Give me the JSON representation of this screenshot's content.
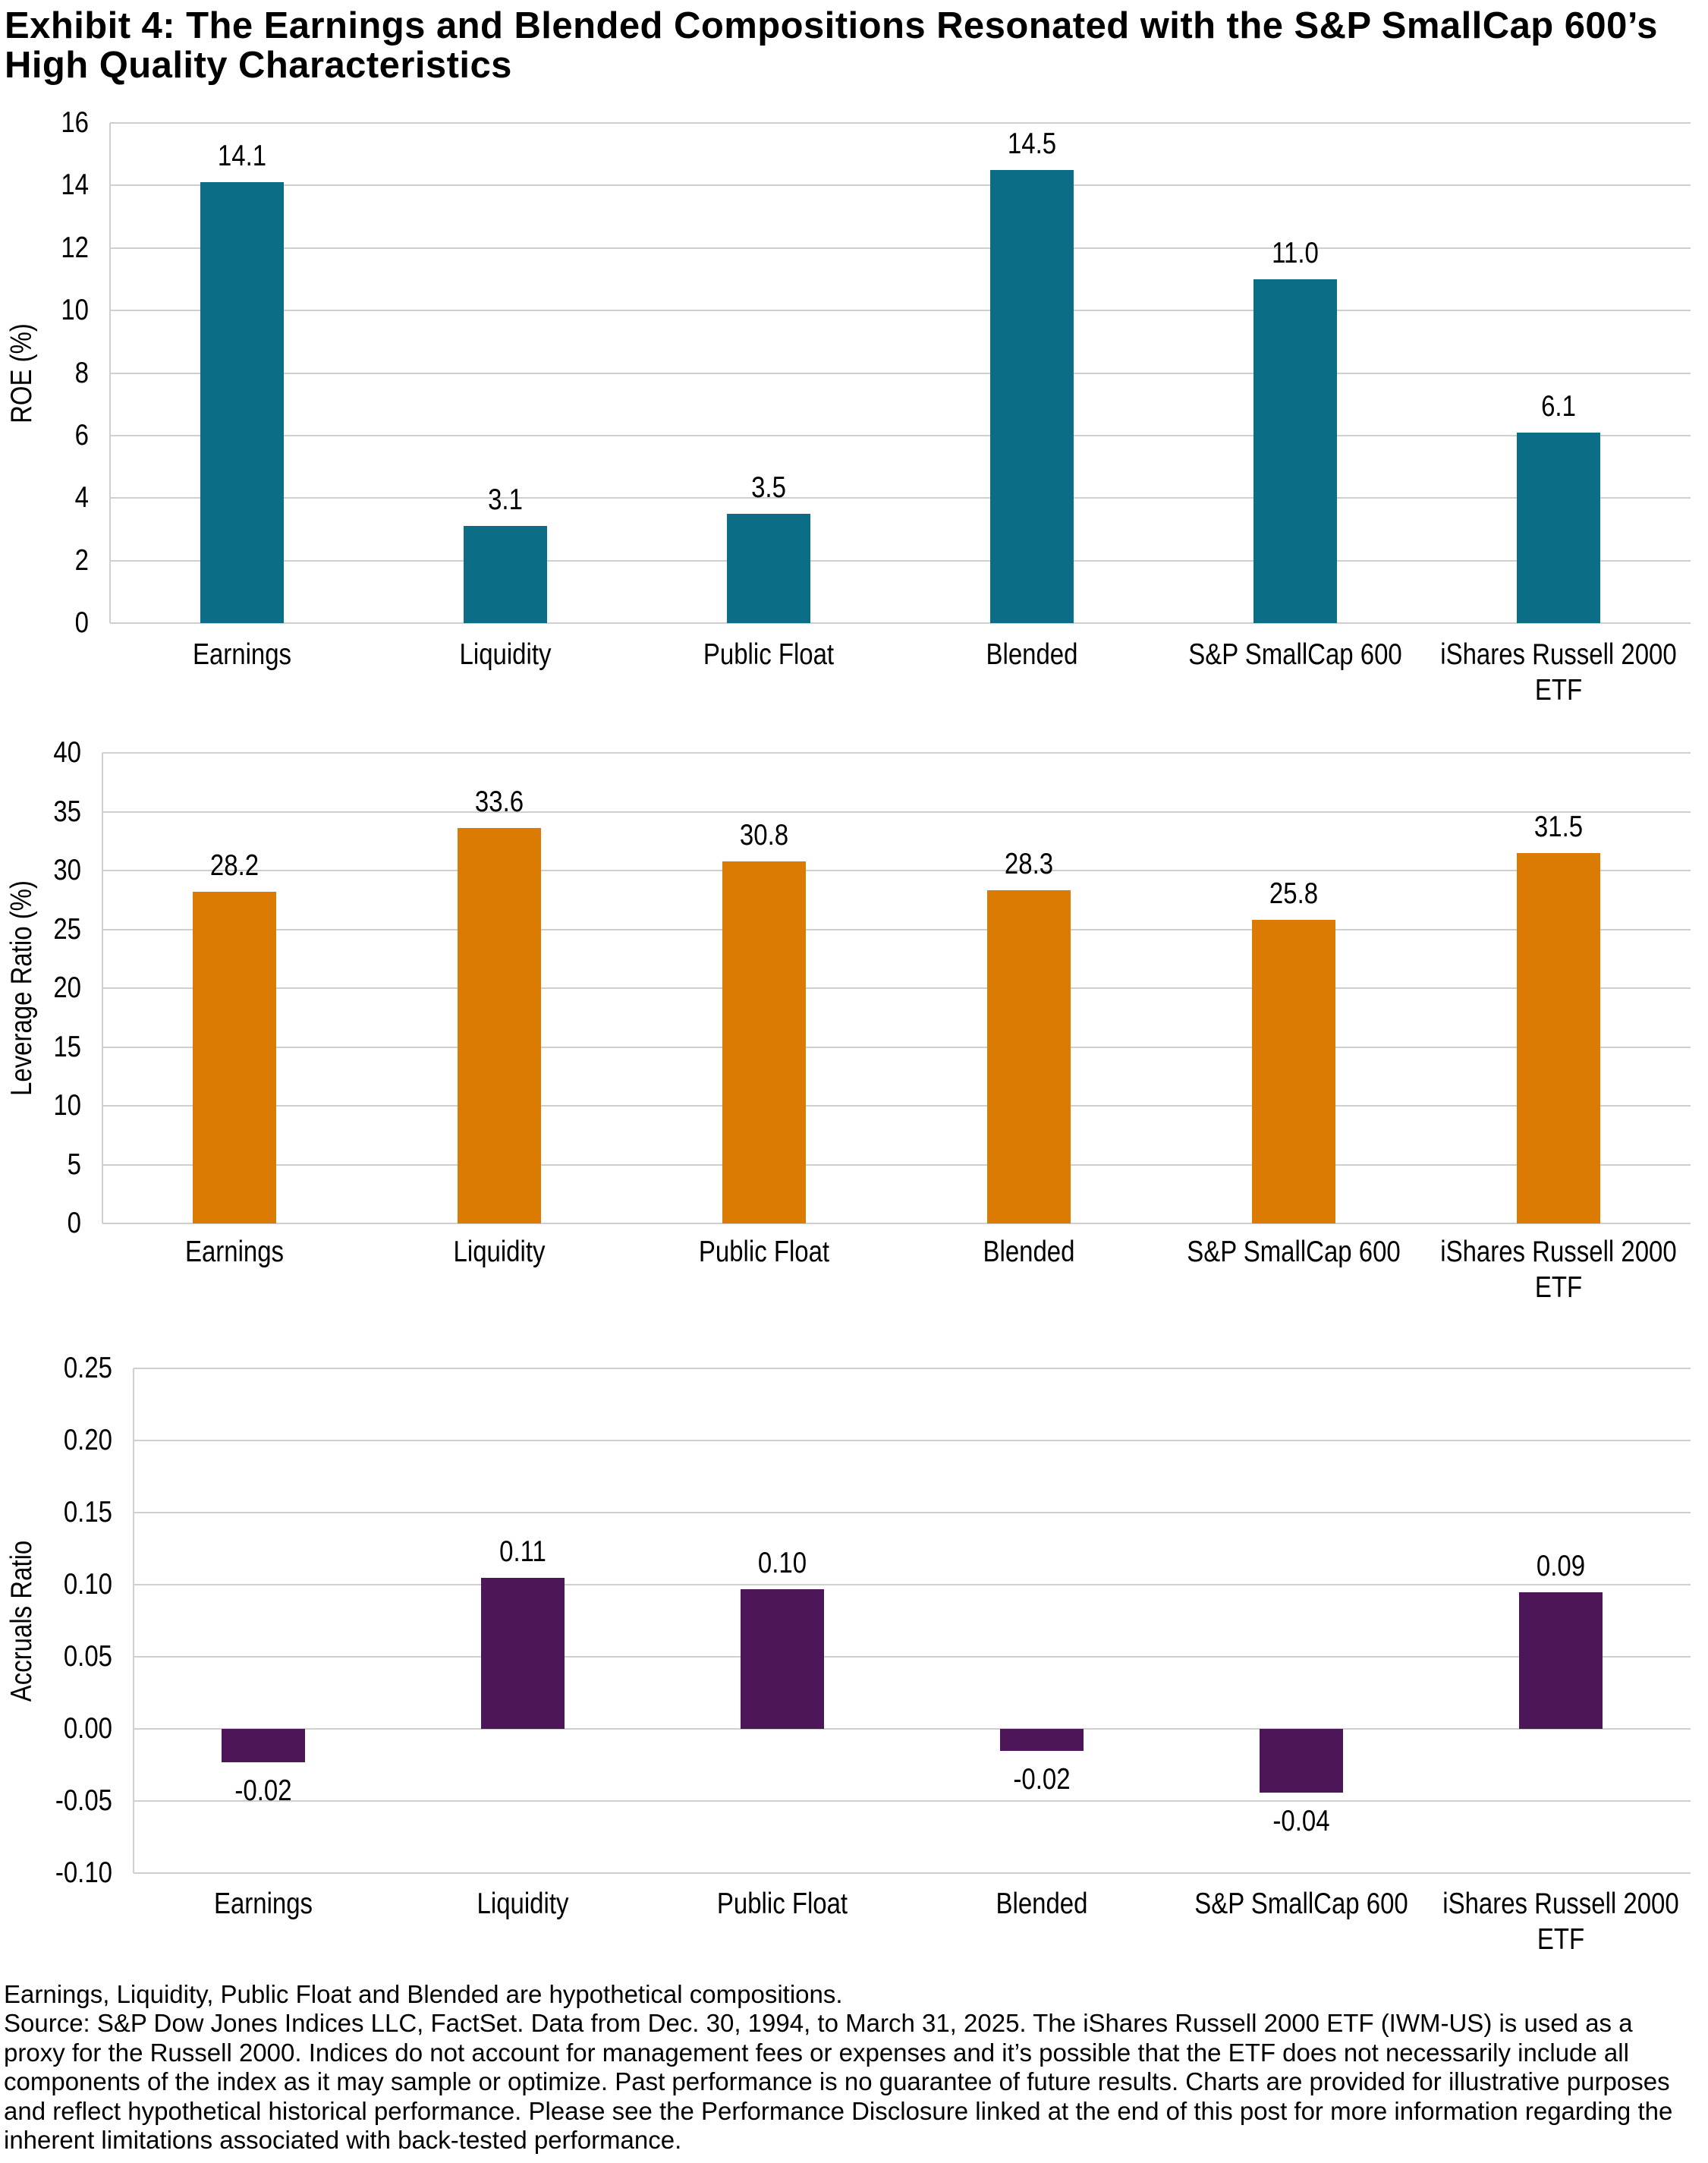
{
  "title": {
    "line1": "Exhibit 4: The Earnings and Blended Compositions Resonated with the S&P SmallCap 600’s",
    "line2": "High Quality Characteristics"
  },
  "chart_data": [
    {
      "id": "roe",
      "type": "bar",
      "title": "",
      "xlabel": "",
      "ylabel": "ROE (%)",
      "categories": [
        "Earnings",
        "Liquidity",
        "Public Float",
        "Blended",
        "S&P SmallCap 600",
        "iShares Russell 2000 ETF"
      ],
      "categories_lines": [
        [
          "Earnings"
        ],
        [
          "Liquidity"
        ],
        [
          "Public Float"
        ],
        [
          "Blended"
        ],
        [
          "S&P SmallCap 600"
        ],
        [
          "iShares Russell 2000",
          "ETF"
        ]
      ],
      "values": [
        14.1,
        3.1,
        3.5,
        14.5,
        11.0,
        6.1
      ],
      "labels": [
        "14.1",
        "3.1",
        "3.5",
        "14.5",
        "11.0",
        "6.1"
      ],
      "ylim": [
        0,
        16
      ],
      "ytick_step": 2,
      "tick_values": [
        0,
        2,
        4,
        6,
        8,
        10,
        12,
        14,
        16
      ],
      "tick_labels": [
        "0",
        "2",
        "4",
        "6",
        "8",
        "10",
        "12",
        "14",
        "16"
      ],
      "bar_color": "#0c6d87",
      "grid": true,
      "legend": false
    },
    {
      "id": "leverage-ratio",
      "type": "bar",
      "title": "",
      "xlabel": "",
      "ylabel": "Leverage Ratio (%)",
      "categories": [
        "Earnings",
        "Liquidity",
        "Public Float",
        "Blended",
        "S&P SmallCap 600",
        "iShares Russell 2000 ETF"
      ],
      "categories_lines": [
        [
          "Earnings"
        ],
        [
          "Liquidity"
        ],
        [
          "Public Float"
        ],
        [
          "Blended"
        ],
        [
          "S&P SmallCap 600"
        ],
        [
          "iShares Russell 2000",
          "ETF"
        ]
      ],
      "values": [
        28.2,
        33.6,
        30.8,
        28.3,
        25.8,
        31.5
      ],
      "labels": [
        "28.2",
        "33.6",
        "30.8",
        "28.3",
        "25.8",
        "31.5"
      ],
      "ylim": [
        0,
        40
      ],
      "ytick_step": 5,
      "tick_values": [
        0,
        5,
        10,
        15,
        20,
        25,
        30,
        35,
        40
      ],
      "tick_labels": [
        "0",
        "5",
        "10",
        "15",
        "20",
        "25",
        "30",
        "35",
        "40"
      ],
      "bar_color": "#dc7b04",
      "grid": true,
      "legend": false
    },
    {
      "id": "accruals-ratio",
      "type": "bar",
      "title": "",
      "xlabel": "",
      "ylabel": "Accruals Ratio",
      "categories": [
        "Earnings",
        "Liquidity",
        "Public Float",
        "Blended",
        "S&P SmallCap 600",
        "iShares Russell 2000 ETF"
      ],
      "categories_lines": [
        [
          "Earnings"
        ],
        [
          "Liquidity"
        ],
        [
          "Public Float"
        ],
        [
          "Blended"
        ],
        [
          "S&P SmallCap 600"
        ],
        [
          "iShares Russell 2000",
          "ETF"
        ]
      ],
      "values": [
        -0.02,
        0.11,
        0.1,
        -0.02,
        -0.04,
        0.09
      ],
      "render_values": [
        -0.023,
        0.105,
        0.097,
        -0.015,
        -0.044,
        0.095
      ],
      "labels": [
        "-0.02",
        "0.11",
        "0.10",
        "-0.02",
        "-0.04",
        "0.09"
      ],
      "ylim": [
        -0.1,
        0.25
      ],
      "ytick_step": 0.05,
      "tick_values": [
        -0.1,
        -0.05,
        0,
        0.05,
        0.1,
        0.15,
        0.2,
        0.25
      ],
      "tick_labels": [
        "-0.10",
        "-0.05",
        "0.00",
        "0.05",
        "0.10",
        "0.15",
        "0.20",
        "0.25"
      ],
      "bar_color": "#4d1659",
      "grid": true,
      "legend": false
    }
  ],
  "footer": {
    "lines": [
      "Earnings, Liquidity, Public Float and Blended are hypothetical compositions.",
      "Source: S&P Dow Jones Indices LLC, FactSet. Data from Dec. 30, 1994, to March 31, 2025. The iShares Russell 2000 ETF (IWM-US) is used as a",
      "proxy for the Russell 2000. Indices do not account for management fees or expenses and it’s possible that the ETF does not necessarily include all",
      "components of the index as it may sample or optimize. Past performance is no guarantee of future results. Charts are provided for illustrative purposes",
      "and reflect hypothetical historical performance. Please see the Performance Disclosure linked at the end of this post for more information regarding the",
      "inherent limitations associated with back-tested performance."
    ]
  }
}
